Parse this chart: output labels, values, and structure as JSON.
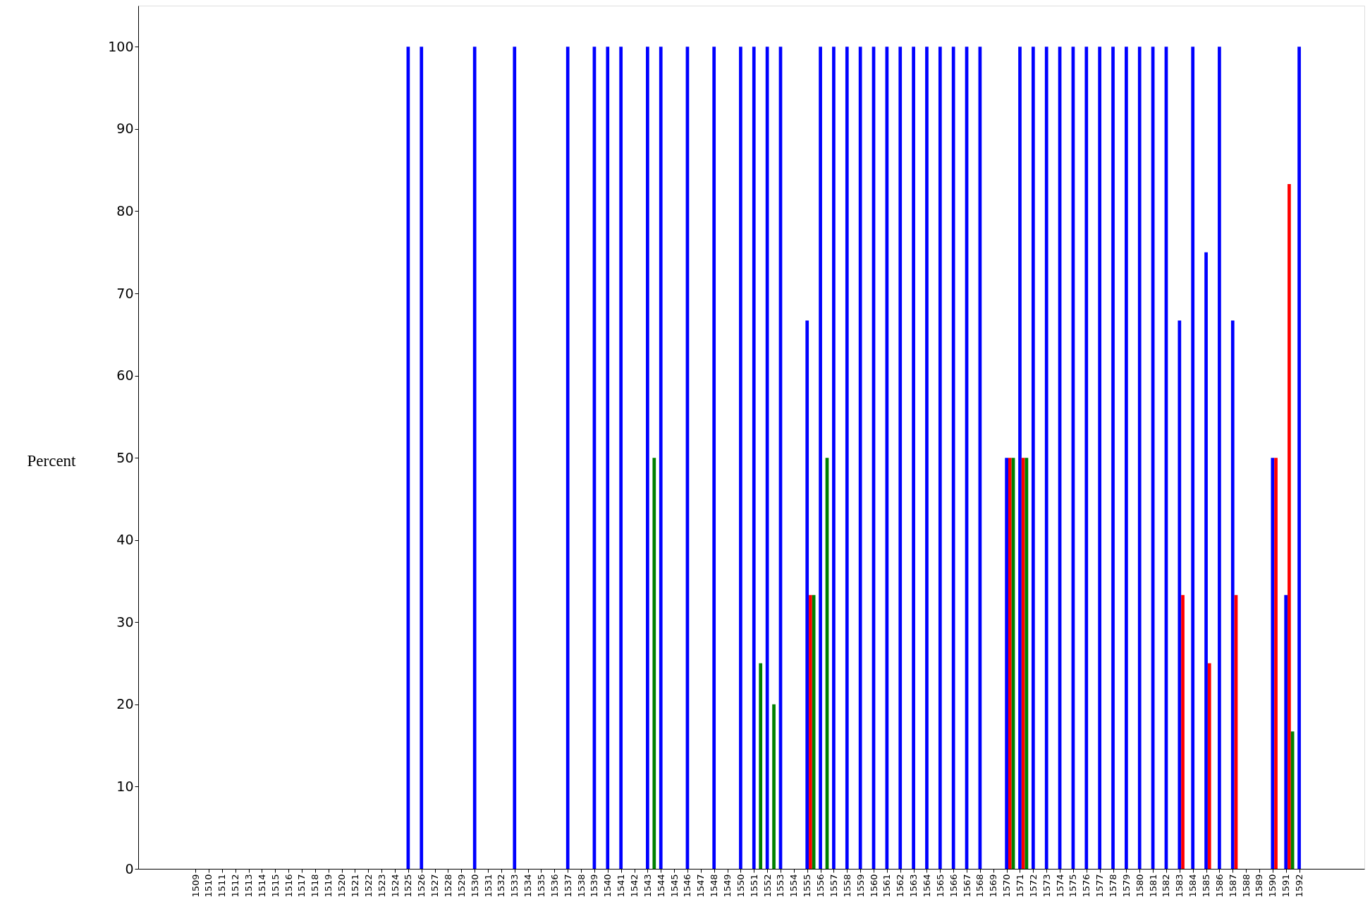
{
  "chart_data": {
    "type": "bar",
    "ylabel": "Percent",
    "categories": [
      "1509",
      "1510",
      "1511",
      "1512",
      "1513",
      "1514",
      "1515",
      "1516",
      "1517",
      "1518",
      "1519",
      "1520",
      "1521",
      "1522",
      "1523",
      "1524",
      "1525",
      "1526",
      "1527",
      "1528",
      "1529",
      "1530",
      "1531",
      "1532",
      "1533",
      "1534",
      "1535",
      "1536",
      "1537",
      "1538",
      "1539",
      "1540",
      "1541",
      "1542",
      "1543",
      "1544",
      "1545",
      "1546",
      "1547",
      "1548",
      "1549",
      "1550",
      "1551",
      "1552",
      "1553",
      "1554",
      "1555",
      "1556",
      "1557",
      "1558",
      "1559",
      "1560",
      "1561",
      "1562",
      "1563",
      "1564",
      "1565",
      "1566",
      "1567",
      "1568",
      "1569",
      "1570",
      "1571",
      "1572",
      "1573",
      "1574",
      "1575",
      "1576",
      "1577",
      "1578",
      "1579",
      "1580",
      "1581",
      "1582",
      "1583",
      "1584",
      "1585",
      "1586",
      "1587",
      "1588",
      "1589",
      "1590",
      "1591",
      "1592"
    ],
    "series": [
      {
        "color": "#0000ff",
        "values": [
          0,
          0,
          0,
          0,
          0,
          0,
          0,
          0,
          0,
          0,
          0,
          0,
          0,
          0,
          0,
          0,
          100,
          100,
          0,
          0,
          0,
          100,
          0,
          0,
          100,
          0,
          0,
          0,
          100,
          0,
          100,
          100,
          100,
          0,
          100,
          100,
          0,
          100,
          0,
          100,
          0,
          100,
          100,
          100,
          100,
          0,
          66.7,
          100,
          100,
          100,
          100,
          100,
          100,
          100,
          100,
          100,
          100,
          100,
          100,
          100,
          0,
          50,
          100,
          100,
          100,
          100,
          100,
          100,
          100,
          100,
          100,
          100,
          100,
          100,
          66.7,
          100,
          75,
          100,
          66.7,
          0,
          0,
          50,
          33.3,
          100
        ]
      },
      {
        "color": "#ff0000",
        "values": [
          0,
          0,
          0,
          0,
          0,
          0,
          0,
          0,
          0,
          0,
          0,
          0,
          0,
          0,
          0,
          0,
          0,
          0,
          0,
          0,
          0,
          0,
          0,
          0,
          0,
          0,
          0,
          0,
          0,
          0,
          0,
          0,
          0,
          0,
          0,
          0,
          0,
          0,
          0,
          0,
          0,
          0,
          0,
          0,
          0,
          0,
          33.3,
          0,
          0,
          0,
          0,
          0,
          0,
          0,
          0,
          0,
          0,
          0,
          0,
          0,
          0,
          50,
          50,
          0,
          0,
          0,
          0,
          0,
          0,
          0,
          0,
          0,
          0,
          0,
          33.3,
          0,
          25,
          0,
          33.3,
          0,
          0,
          50,
          83.3,
          0
        ]
      },
      {
        "color": "#008000",
        "values": [
          0,
          0,
          0,
          0,
          0,
          0,
          0,
          0,
          0,
          0,
          0,
          0,
          0,
          0,
          0,
          0,
          0,
          0,
          0,
          0,
          0,
          0,
          0,
          0,
          0,
          0,
          0,
          0,
          0,
          0,
          0,
          0,
          0,
          0,
          50,
          0,
          0,
          0,
          0,
          0,
          0,
          0,
          25,
          20,
          0,
          0,
          33.3,
          50,
          0,
          0,
          0,
          0,
          0,
          0,
          0,
          0,
          0,
          0,
          0,
          0,
          0,
          50,
          50,
          0,
          0,
          0,
          0,
          0,
          0,
          0,
          0,
          0,
          0,
          0,
          0,
          0,
          0,
          0,
          0,
          0,
          0,
          0,
          16.7,
          0
        ]
      }
    ],
    "ylim": [
      0,
      105
    ],
    "yticks": [
      0,
      10,
      20,
      30,
      40,
      50,
      60,
      70,
      80,
      90,
      100
    ],
    "grid": false
  }
}
